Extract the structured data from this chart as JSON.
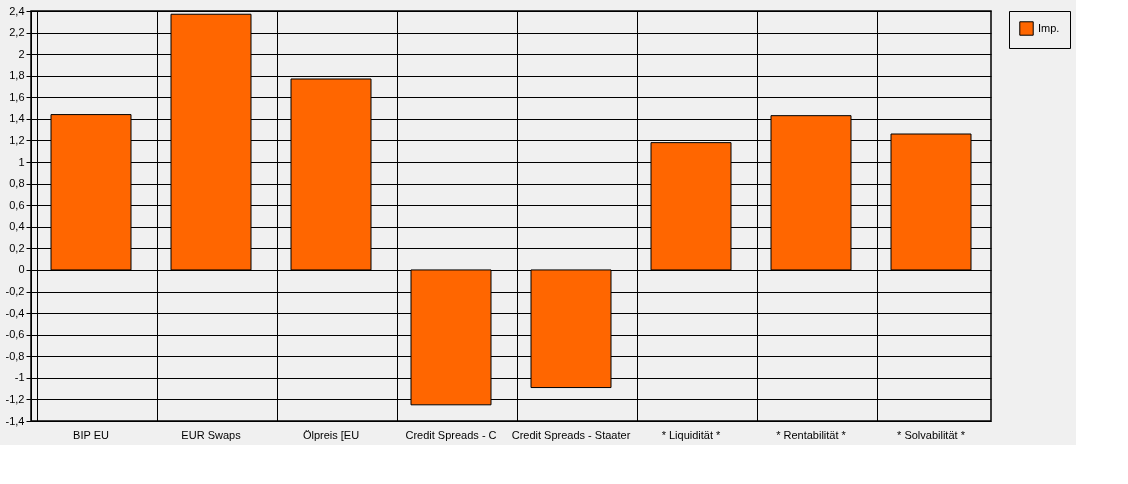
{
  "chart_data": {
    "type": "bar",
    "categories": [
      "BIP EU",
      "EUR Swaps",
      "Ölpreis [EU",
      "Credit Spreads - C",
      "Credit Spreads - Staater",
      "* Liquidität *",
      "* Rentabilität *",
      "* Solvabilität *"
    ],
    "series": [
      {
        "name": "Imp.",
        "color": "#ff6600",
        "values": [
          1.44,
          2.37,
          1.77,
          -1.25,
          -1.09,
          1.18,
          1.43,
          1.26
        ]
      }
    ],
    "ylim": [
      -1.4,
      2.4
    ],
    "yticks": [
      {
        "value": -1.4,
        "label": "-1,4"
      },
      {
        "value": -1.2,
        "label": "-1,2"
      },
      -1,
      {
        "value": -0.8,
        "label": "-0,8"
      },
      {
        "value": -0.6,
        "label": "-0,6"
      },
      {
        "value": -0.4,
        "label": "-0,4"
      },
      {
        "value": -0.2,
        "label": "-0,2"
      },
      0,
      {
        "value": 0.2,
        "label": "0,2"
      },
      {
        "value": 0.4,
        "label": "0,4"
      },
      {
        "value": 0.6,
        "label": "0,6"
      },
      {
        "value": 0.8,
        "label": "0,8"
      },
      1,
      {
        "value": 1.2,
        "label": "1,2"
      },
      {
        "value": 1.4,
        "label": "1,4"
      },
      {
        "value": 1.6,
        "label": "1,6"
      },
      {
        "value": 1.8,
        "label": "1,8"
      },
      2,
      {
        "value": 2.2,
        "label": "2,2"
      },
      {
        "value": 2.4,
        "label": "2,4"
      }
    ],
    "grid": true,
    "legend": "top right"
  }
}
